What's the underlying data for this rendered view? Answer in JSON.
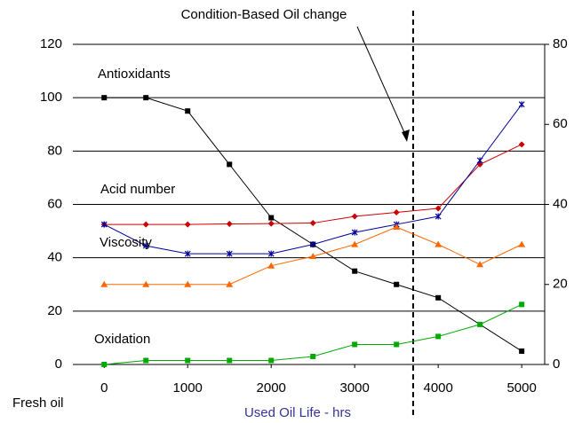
{
  "chart_data": {
    "type": "line",
    "annotation": "Condition-Based Oil change",
    "xlabel_left": "Fresh oil",
    "xlabel": "Used Oil Life - hrs",
    "x": [
      0,
      500,
      1000,
      1500,
      2000,
      2500,
      3000,
      3500,
      4000,
      4500,
      5000
    ],
    "xlim": [
      -375,
      5275
    ],
    "xticks": [
      0,
      1000,
      2000,
      3000,
      4000,
      5000
    ],
    "ylim": [
      0,
      120
    ],
    "yticks": [
      0,
      20,
      40,
      60,
      80,
      100,
      120
    ],
    "y2lim": [
      0,
      80
    ],
    "y2ticks": [
      0,
      20,
      40,
      60,
      80
    ],
    "grid": true,
    "marker_x": 3700,
    "series": [
      {
        "name": "Antioxidants",
        "color": "#000000",
        "marker": "s",
        "values": [
          100,
          100,
          95,
          75,
          55,
          45,
          35,
          30,
          25,
          null,
          5
        ]
      },
      {
        "name": "Acid number",
        "color": "#cc0000",
        "marker": "D",
        "values": [
          52.5,
          52.5,
          52.5,
          52.7,
          52.8,
          53,
          55.5,
          57,
          58.5,
          75,
          82.5
        ]
      },
      {
        "name": "Viscosity",
        "color": "#000099",
        "marker": "x",
        "values": [
          52.5,
          44.5,
          41.5,
          41.5,
          41.5,
          45,
          49.5,
          52.5,
          55.5,
          76.5,
          97.5
        ]
      },
      {
        "color": "#ff6600",
        "marker": "^",
        "values": [
          30,
          30,
          30,
          30,
          37,
          40.5,
          45,
          51.5,
          45,
          37.5,
          45
        ]
      },
      {
        "name": "Oxidation",
        "color": "#00aa00",
        "marker": "s",
        "values": [
          0,
          1.5,
          1.5,
          1.5,
          1.5,
          3,
          7.5,
          7.5,
          10.5,
          15,
          22.5
        ]
      }
    ]
  }
}
